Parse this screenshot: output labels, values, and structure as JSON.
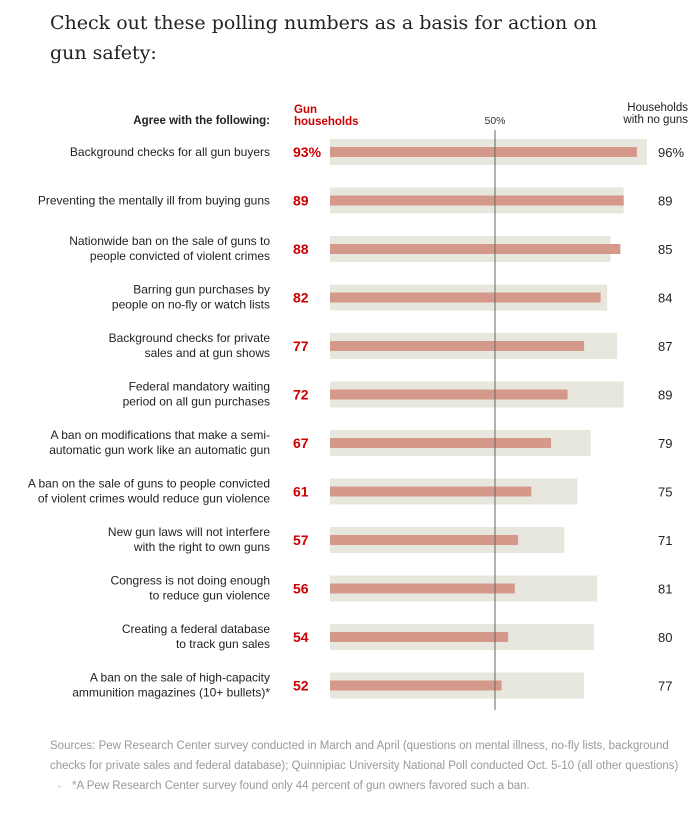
{
  "title": "Check out these polling numbers as a basis for action on gun safety:",
  "chart_data": {
    "type": "bar",
    "orientation": "horizontal",
    "categories_header": "Agree with the following:",
    "reference_line": {
      "value": 50,
      "label": "50%"
    },
    "xlim": [
      0,
      100
    ],
    "categories": [
      [
        "Background checks for all gun buyers"
      ],
      [
        "Preventing the mentally ill from buying guns"
      ],
      [
        "Nationwide ban on the sale of guns to",
        "people convicted of violent crimes"
      ],
      [
        "Barring gun purchases by",
        "people on no-fly or watch lists"
      ],
      [
        "Background checks for private",
        "sales and at gun shows"
      ],
      [
        "Federal mandatory waiting",
        "period on all gun purchases"
      ],
      [
        "A ban on modifications that make a semi-",
        "automatic gun work like an automatic gun"
      ],
      [
        "A ban on the sale of guns to people convicted",
        "of violent crimes would reduce gun violence"
      ],
      [
        "New gun laws will not interfere",
        "with the right to own guns"
      ],
      [
        "Congress is not doing enough",
        "to reduce gun violence"
      ],
      [
        "Creating a federal database",
        "to track gun sales"
      ],
      [
        "A ban on the sale of high-capacity",
        "ammunition magazines (10+ bullets)*"
      ]
    ],
    "series": [
      {
        "name": "Gun households",
        "color": "#d4998a",
        "label_color": "#cc0000",
        "values": [
          93,
          89,
          88,
          82,
          77,
          72,
          67,
          61,
          57,
          56,
          54,
          52
        ],
        "labels": [
          "93%",
          "89",
          "88",
          "82",
          "77",
          "72",
          "67",
          "61",
          "57",
          "56",
          "54",
          "52"
        ]
      },
      {
        "name": "Households with no guns",
        "color": "#e8e7de",
        "label_color": "#222222",
        "values": [
          96,
          89,
          85,
          84,
          87,
          89,
          79,
          75,
          71,
          81,
          80,
          77
        ],
        "labels": [
          "96%",
          "89",
          "85",
          "84",
          "87",
          "89",
          "79",
          "75",
          "71",
          "81",
          "80",
          "77"
        ]
      }
    ]
  },
  "headers": {
    "gun": [
      "Gun",
      "households"
    ],
    "nogun": [
      "Households",
      "with no guns"
    ]
  },
  "source": "Sources: Pew Research Center survey conducted in March and April (questions on mental illness, no-fly lists, background checks for private sales and federal database); Quinnipiac University National Poll conducted Oct. 5-10 (all other questions)",
  "separator": "•",
  "footnote": "*A Pew Research Center survey found only 44 percent of gun owners favored such a ban."
}
